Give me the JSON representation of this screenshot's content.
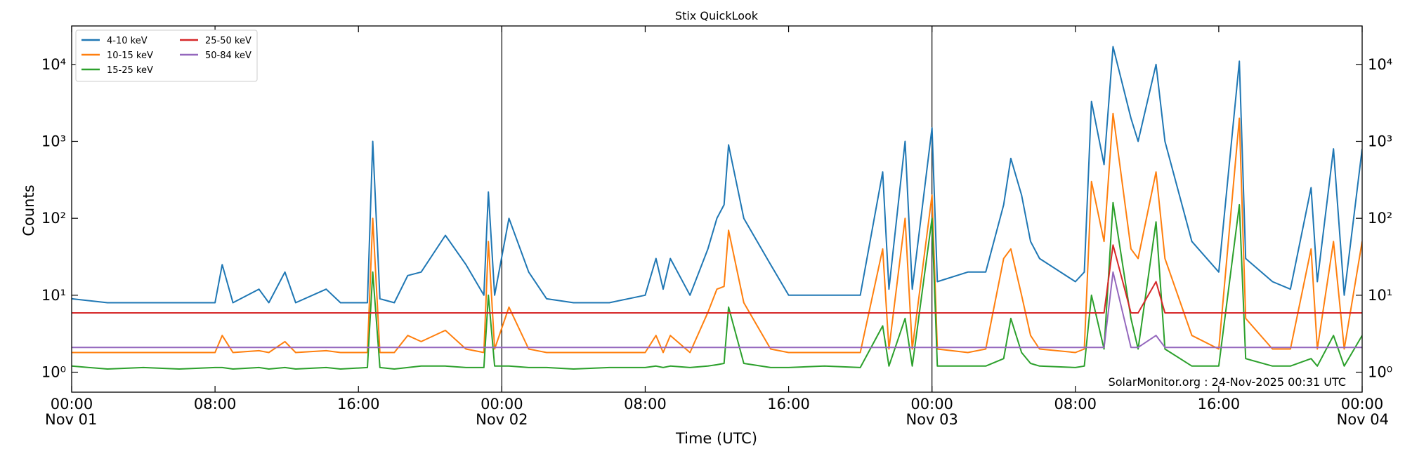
{
  "chart_data": {
    "type": "line",
    "title": "Stix QuickLook",
    "xlabel": "Time (UTC)",
    "ylabel": "Counts",
    "annotation": "SolarMonitor.org : 24-Nov-2025 00:31 UTC",
    "log_y": true,
    "legend": "upper left",
    "xlim": [
      0,
      72
    ],
    "xticks": [
      {
        "value": 0,
        "label": "00:00",
        "sublabel": "Nov 01"
      },
      {
        "value": 8,
        "label": "08:00"
      },
      {
        "value": 16,
        "label": "16:00"
      },
      {
        "value": 24,
        "label": "00:00",
        "sublabel": "Nov 02"
      },
      {
        "value": 32,
        "label": "08:00"
      },
      {
        "value": 40,
        "label": "16:00"
      },
      {
        "value": 48,
        "label": "00:00",
        "sublabel": "Nov 03"
      },
      {
        "value": 56,
        "label": "08:00"
      },
      {
        "value": 64,
        "label": "16:00"
      },
      {
        "value": 72,
        "label": "00:00",
        "sublabel": "Nov 04"
      }
    ],
    "ylim": [
      0.55,
      31600
    ],
    "yticks": [
      {
        "value": 1,
        "label": "10⁰"
      },
      {
        "value": 10,
        "label": "10¹"
      },
      {
        "value": 100,
        "label": "10²"
      },
      {
        "value": 1000,
        "label": "10³"
      },
      {
        "value": 10000,
        "label": "10⁴"
      }
    ],
    "x": [
      0,
      2,
      4,
      6,
      8,
      8.4,
      9,
      10.45,
      11,
      11.9,
      12.5,
      14.2,
      15,
      16.5,
      16.8,
      17.2,
      18,
      18.75,
      19.5,
      20.85,
      22,
      23,
      23.25,
      23.6,
      24.4,
      25.5,
      26.5,
      28,
      30,
      32,
      32.6,
      33,
      33.4,
      34.5,
      35.5,
      36,
      36.4,
      36.65,
      37.5,
      39,
      40,
      42,
      44,
      45.25,
      45.6,
      46.5,
      46.9,
      48,
      48.3,
      50,
      51,
      52,
      52.4,
      53,
      53.5,
      54,
      56,
      56.5,
      56.9,
      57.6,
      58.1,
      59.1,
      59.5,
      60.5,
      61,
      62.5,
      64,
      65.15,
      65.5,
      67,
      68,
      69.15,
      69.5,
      70.4,
      71,
      72
    ],
    "series": [
      {
        "name": "4-10 keV",
        "color": "#1f77b4",
        "values": [
          9,
          8,
          8,
          8,
          8,
          25,
          8,
          12,
          8,
          20,
          8,
          12,
          8,
          8,
          1000,
          9,
          8,
          18,
          20,
          60,
          25,
          10,
          220,
          10,
          100,
          20,
          9,
          8,
          8,
          10,
          30,
          12,
          30,
          10,
          40,
          100,
          150,
          900,
          100,
          25,
          10,
          10,
          10,
          400,
          12,
          1000,
          12,
          1500,
          15,
          20,
          20,
          150,
          600,
          200,
          50,
          30,
          15,
          20,
          3300,
          500,
          17000,
          2000,
          1000,
          10000,
          1000,
          50,
          20,
          11000,
          30,
          15,
          12,
          250,
          15,
          800,
          10,
          800
        ]
      },
      {
        "name": "10-15 keV",
        "color": "#ff7f0e",
        "values": [
          1.8,
          1.8,
          1.8,
          1.8,
          1.8,
          3,
          1.8,
          1.9,
          1.8,
          2.5,
          1.8,
          1.9,
          1.8,
          1.8,
          100,
          1.8,
          1.8,
          3,
          2.5,
          3.5,
          2,
          1.8,
          50,
          2,
          7,
          2,
          1.8,
          1.8,
          1.8,
          1.8,
          3,
          1.8,
          3,
          1.8,
          6,
          12,
          13,
          70,
          8,
          2,
          1.8,
          1.8,
          1.8,
          40,
          2,
          100,
          2,
          200,
          2,
          1.8,
          2,
          30,
          40,
          10,
          3,
          2,
          1.8,
          2,
          300,
          50,
          2300,
          40,
          30,
          400,
          30,
          3,
          2,
          2000,
          5,
          2,
          2,
          40,
          2,
          50,
          2,
          50
        ]
      },
      {
        "name": "15-25 keV",
        "color": "#2ca02c",
        "values": [
          1.2,
          1.1,
          1.15,
          1.1,
          1.15,
          1.15,
          1.1,
          1.15,
          1.1,
          1.15,
          1.1,
          1.15,
          1.1,
          1.15,
          20,
          1.15,
          1.1,
          1.15,
          1.2,
          1.2,
          1.15,
          1.15,
          10,
          1.2,
          1.2,
          1.15,
          1.15,
          1.1,
          1.15,
          1.15,
          1.2,
          1.15,
          1.2,
          1.15,
          1.2,
          1.25,
          1.3,
          7,
          1.3,
          1.15,
          1.15,
          1.2,
          1.15,
          4,
          1.2,
          5,
          1.2,
          100,
          1.2,
          1.2,
          1.2,
          1.5,
          5,
          1.8,
          1.3,
          1.2,
          1.15,
          1.2,
          10,
          2,
          160,
          5,
          2,
          90,
          2,
          1.2,
          1.2,
          150,
          1.5,
          1.2,
          1.2,
          1.5,
          1.2,
          3,
          1.2,
          3
        ]
      },
      {
        "name": "25-50 keV",
        "color": "#d62728",
        "values": [
          5.9,
          5.9,
          5.9,
          5.9,
          5.9,
          5.9,
          5.9,
          5.9,
          5.9,
          5.9,
          5.9,
          5.9,
          5.9,
          5.9,
          5.9,
          5.9,
          5.9,
          5.9,
          5.9,
          5.9,
          5.9,
          5.9,
          5.9,
          5.9,
          5.9,
          5.9,
          5.9,
          5.9,
          5.9,
          5.9,
          5.9,
          5.9,
          5.9,
          5.9,
          5.9,
          5.9,
          5.9,
          5.9,
          5.9,
          5.9,
          5.9,
          5.9,
          5.9,
          5.9,
          5.9,
          5.9,
          5.9,
          5.9,
          5.9,
          5.9,
          5.9,
          5.9,
          5.9,
          5.9,
          5.9,
          5.9,
          5.9,
          5.9,
          5.9,
          5.9,
          45,
          5.9,
          5.9,
          15,
          5.9,
          5.9,
          5.9,
          5.9,
          5.9,
          5.9,
          5.9,
          5.9,
          5.9,
          5.9,
          5.9,
          5.9
        ]
      },
      {
        "name": "50-84 keV",
        "color": "#9467bd",
        "values": [
          2.1,
          2.1,
          2.1,
          2.1,
          2.1,
          2.1,
          2.1,
          2.1,
          2.1,
          2.1,
          2.1,
          2.1,
          2.1,
          2.1,
          2.1,
          2.1,
          2.1,
          2.1,
          2.1,
          2.1,
          2.1,
          2.1,
          2.1,
          2.1,
          2.1,
          2.1,
          2.1,
          2.1,
          2.1,
          2.1,
          2.1,
          2.1,
          2.1,
          2.1,
          2.1,
          2.1,
          2.1,
          2.1,
          2.1,
          2.1,
          2.1,
          2.1,
          2.1,
          2.1,
          2.1,
          2.1,
          2.1,
          2.1,
          2.1,
          2.1,
          2.1,
          2.1,
          2.1,
          2.1,
          2.1,
          2.1,
          2.1,
          2.1,
          2.1,
          2.1,
          20,
          2.1,
          2.1,
          3,
          2.1,
          2.1,
          2.1,
          2.1,
          2.1,
          2.1,
          2.1,
          2.1,
          2.1,
          2.1,
          2.1,
          2.1
        ]
      }
    ]
  }
}
